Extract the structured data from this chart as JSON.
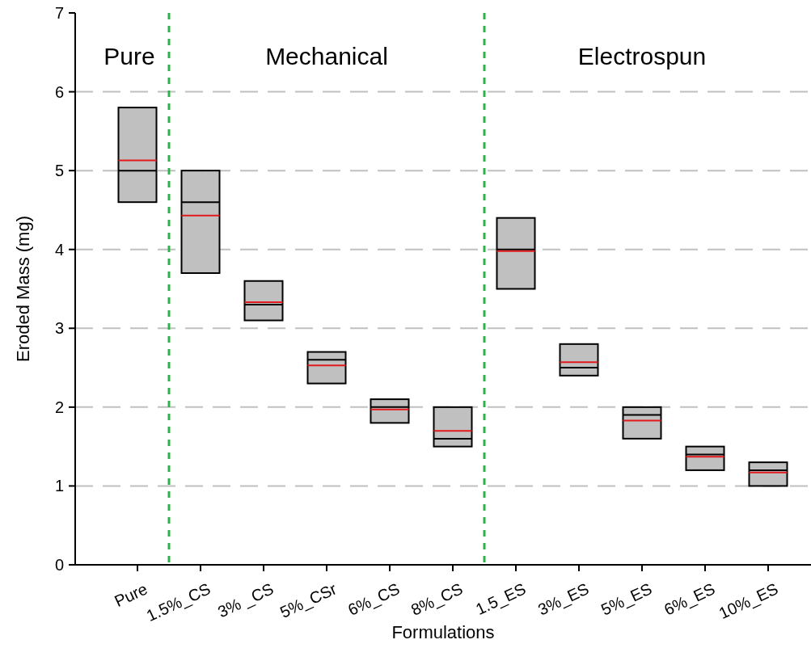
{
  "chart_data": {
    "type": "box",
    "xlabel": "Formulations",
    "ylabel": "Eroded Mass (mg)",
    "categories": [
      "Pure",
      "1.5%_CS",
      "3% _CS",
      "5%_CSr",
      "6%_CS",
      "8%_CS",
      "1.5_ES",
      "3%_ES",
      "5%_ES",
      "6%_ES",
      "10%_ES"
    ],
    "boxes": [
      {
        "low": 4.6,
        "q1": 4.6,
        "median": 5.0,
        "q3": 5.8,
        "high": 5.8,
        "mean": 5.13
      },
      {
        "low": 3.7,
        "q1": 3.7,
        "median": 4.6,
        "q3": 5.0,
        "high": 5.0,
        "mean": 4.43
      },
      {
        "low": 3.1,
        "q1": 3.1,
        "median": 3.3,
        "q3": 3.6,
        "high": 3.6,
        "mean": 3.33
      },
      {
        "low": 2.3,
        "q1": 2.3,
        "median": 2.6,
        "q3": 2.7,
        "high": 2.7,
        "mean": 2.53
      },
      {
        "low": 1.8,
        "q1": 1.8,
        "median": 2.0,
        "q3": 2.1,
        "high": 2.1,
        "mean": 1.97
      },
      {
        "low": 1.5,
        "q1": 1.5,
        "median": 1.6,
        "q3": 2.0,
        "high": 2.0,
        "mean": 1.7
      },
      {
        "low": 3.5,
        "q1": 3.5,
        "median": 4.0,
        "q3": 4.4,
        "high": 4.4,
        "mean": 3.98
      },
      {
        "low": 2.4,
        "q1": 2.4,
        "median": 2.5,
        "q3": 2.8,
        "high": 2.8,
        "mean": 2.57
      },
      {
        "low": 1.6,
        "q1": 1.6,
        "median": 1.9,
        "q3": 2.0,
        "high": 2.0,
        "mean": 1.83
      },
      {
        "low": 1.2,
        "q1": 1.2,
        "median": 1.4,
        "q3": 1.5,
        "high": 1.5,
        "mean": 1.37
      },
      {
        "low": 1.0,
        "q1": 1.0,
        "median": 1.2,
        "q3": 1.3,
        "high": 1.3,
        "mean": 1.17
      }
    ],
    "color": "#c0c0c0",
    "ylim": [
      0,
      7
    ],
    "yticks": [
      0,
      1,
      2,
      3,
      4,
      5,
      6,
      7
    ],
    "grid": "y",
    "annotations": [
      "Pure",
      "Mechanical",
      "Electrospun"
    ]
  }
}
